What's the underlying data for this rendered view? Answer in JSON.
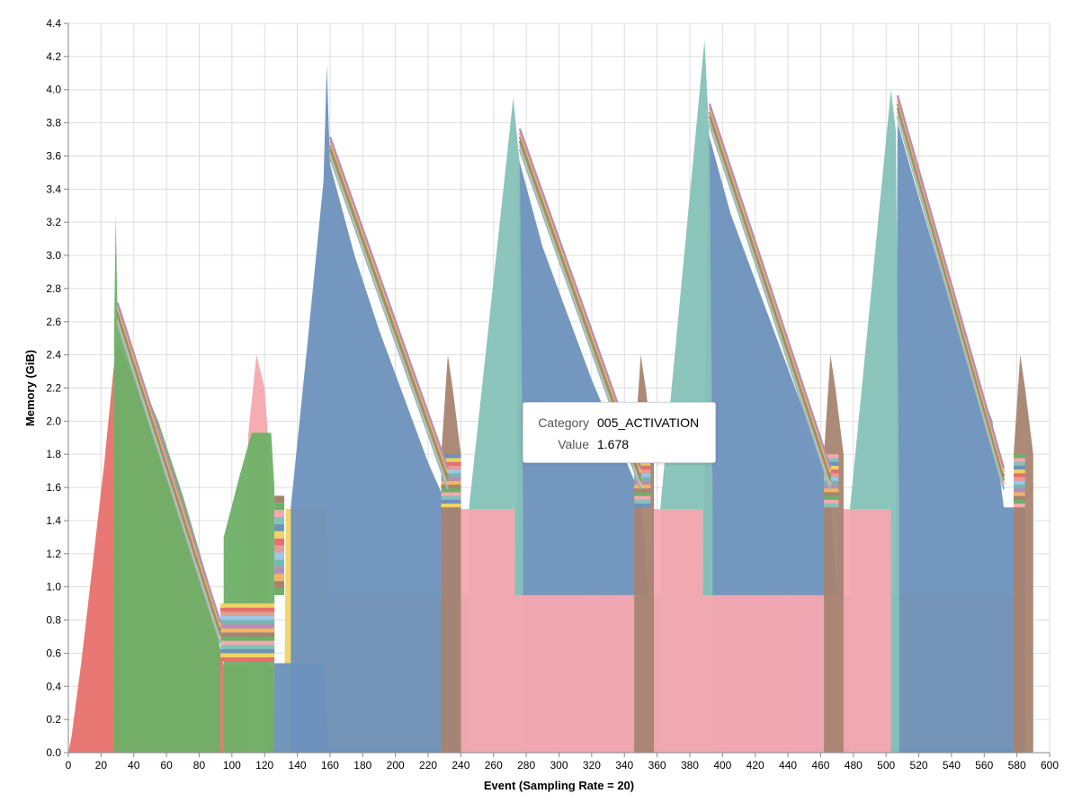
{
  "chart_data": {
    "type": "area",
    "stacked": true,
    "xlabel": "Event (Sampling Rate = 20)",
    "ylabel": "Memory (GiB)",
    "xlim": [
      0,
      600
    ],
    "ylim": [
      0,
      4.4
    ],
    "x_ticks": [
      "0",
      "20",
      "40",
      "60",
      "80",
      "100",
      "120",
      "140",
      "160",
      "180",
      "200",
      "220",
      "240",
      "260",
      "280",
      "300",
      "320",
      "340",
      "360",
      "380",
      "400",
      "420",
      "440",
      "460",
      "480",
      "500",
      "520",
      "540",
      "560",
      "580",
      "600"
    ],
    "y_ticks": [
      "0.0",
      "0.2",
      "0.4",
      "0.6",
      "0.8",
      "1.0",
      "1.2",
      "1.4",
      "1.6",
      "1.8",
      "2.0",
      "2.2",
      "2.4",
      "2.6",
      "2.8",
      "3.0",
      "3.2",
      "3.4",
      "3.6",
      "3.8",
      "4.0",
      "4.2",
      "4.4"
    ],
    "grid": true,
    "colors": [
      "#e8706c",
      "#f0d462",
      "#6d91bd",
      "#85c2b8",
      "#f7a8b0",
      "#6eb067",
      "#a68471",
      "#f3b365",
      "#b48fb5",
      "#76b7b2",
      "#9fc5e8",
      "#e39e96"
    ],
    "series": [
      {
        "color": "#e8706c",
        "points": [
          [
            0,
            0
          ],
          [
            2,
            0.1
          ],
          [
            8,
            0.55
          ],
          [
            15,
            1.15
          ],
          [
            22,
            1.75
          ],
          [
            28,
            2.35
          ],
          [
            30,
            2.48
          ],
          [
            40,
            2.25
          ],
          [
            55,
            1.9
          ],
          [
            70,
            1.45
          ],
          [
            85,
            0.95
          ],
          [
            93,
            0.6
          ],
          [
            95,
            0.53
          ],
          [
            125,
            0.53
          ],
          [
            126,
            0
          ]
        ]
      },
      {
        "color": "#f0d462",
        "points": [
          [
            132,
            0
          ],
          [
            133,
            1.47
          ],
          [
            158,
            1.47
          ],
          [
            159,
            0.95
          ],
          [
            585,
            0.95
          ],
          [
            586,
            0
          ]
        ]
      },
      {
        "color": "#6d91bd",
        "points": [
          [
            125,
            0
          ],
          [
            126,
            0.54
          ],
          [
            156,
            0.54
          ],
          [
            159,
            0.02
          ],
          [
            585,
            0.02
          ]
        ]
      },
      {
        "color": "#6d91bd",
        "points": [
          [
            136,
            1.48
          ],
          [
            146,
            2.45
          ],
          [
            156,
            3.45
          ],
          [
            158,
            4.15
          ],
          [
            160,
            3.55
          ],
          [
            175,
            3.0
          ],
          [
            190,
            2.55
          ],
          [
            205,
            2.15
          ],
          [
            220,
            1.75
          ],
          [
            232,
            1.48
          ],
          [
            240,
            1.48
          ],
          [
            240,
            0.95
          ],
          [
            273,
            0.95
          ],
          [
            274,
            1.45
          ],
          [
            275,
            3.6
          ],
          [
            290,
            3.05
          ],
          [
            305,
            2.65
          ],
          [
            320,
            2.25
          ],
          [
            335,
            1.9
          ],
          [
            350,
            1.55
          ],
          [
            355,
            0.95
          ],
          [
            388,
            0.95
          ],
          [
            389,
            1.45
          ],
          [
            391,
            3.75
          ],
          [
            405,
            3.25
          ],
          [
            420,
            2.85
          ],
          [
            435,
            2.45
          ],
          [
            450,
            2.05
          ],
          [
            465,
            1.7
          ],
          [
            470,
            0.95
          ],
          [
            505,
            0.95
          ],
          [
            506,
            1.45
          ],
          [
            507,
            3.8
          ],
          [
            520,
            3.35
          ],
          [
            535,
            2.85
          ],
          [
            550,
            2.4
          ],
          [
            565,
            2.0
          ],
          [
            572,
            1.48
          ],
          [
            585,
            1.48
          ]
        ]
      },
      {
        "color": "#85c2b8",
        "points": [
          [
            245,
            1.48
          ],
          [
            272,
            3.95
          ],
          [
            276,
            3.55
          ],
          [
            278,
            1.45
          ]
        ]
      },
      {
        "color": "#85c2b8",
        "points": [
          [
            362,
            1.48
          ],
          [
            389,
            4.3
          ],
          [
            392,
            3.7
          ],
          [
            394,
            1.45
          ]
        ]
      },
      {
        "color": "#85c2b8",
        "points": [
          [
            478,
            1.48
          ],
          [
            503,
            4.0
          ],
          [
            506,
            3.75
          ],
          [
            508,
            1.45
          ]
        ]
      },
      {
        "color": "#f7a8b0",
        "points": [
          [
            240,
            0.95
          ],
          [
            240,
            1.47
          ],
          [
            273,
            1.47
          ],
          [
            273,
            0.95
          ],
          [
            355,
            0.95
          ],
          [
            356,
            1.47
          ],
          [
            388,
            1.47
          ],
          [
            388,
            0.95
          ],
          [
            470,
            0.95
          ],
          [
            471,
            1.47
          ],
          [
            503,
            1.47
          ],
          [
            503,
            0.95
          ]
        ]
      },
      {
        "color": "#f7a8b0",
        "points": [
          [
            110,
            1.92
          ],
          [
            115,
            2.4
          ],
          [
            120,
            2.2
          ],
          [
            122,
            1.92
          ]
        ]
      },
      {
        "color": "#6eb067",
        "points": [
          [
            95,
            1.02
          ],
          [
            95,
            1.3
          ],
          [
            105,
            1.68
          ],
          [
            112,
            1.93
          ],
          [
            124,
            1.93
          ],
          [
            126,
            1.6
          ],
          [
            126,
            1.02
          ]
        ]
      },
      {
        "color": "#6eb067",
        "points": [
          [
            28,
            2.55
          ],
          [
            29,
            3.25
          ],
          [
            30,
            2.65
          ],
          [
            40,
            2.35
          ],
          [
            55,
            2.0
          ],
          [
            70,
            1.55
          ],
          [
            85,
            1.05
          ],
          [
            93,
            0.62
          ]
        ]
      },
      {
        "color": "#a68471",
        "points": [
          [
            228,
            1.8
          ],
          [
            232,
            2.4
          ],
          [
            235,
            2.2
          ],
          [
            240,
            1.8
          ]
        ]
      },
      {
        "color": "#a68471",
        "points": [
          [
            346,
            1.8
          ],
          [
            350,
            2.4
          ],
          [
            353,
            2.2
          ],
          [
            358,
            1.8
          ]
        ]
      },
      {
        "color": "#a68471",
        "points": [
          [
            462,
            1.8
          ],
          [
            466,
            2.4
          ],
          [
            469,
            2.2
          ],
          [
            474,
            1.8
          ]
        ]
      },
      {
        "color": "#a68471",
        "points": [
          [
            578,
            1.8
          ],
          [
            582,
            2.4
          ],
          [
            585,
            2.2
          ],
          [
            590,
            1.8
          ]
        ]
      }
    ]
  },
  "tooltip": {
    "category_key": "Category",
    "category_value": "005_ACTIVATION",
    "value_key": "Value",
    "value_value": "1.678"
  }
}
